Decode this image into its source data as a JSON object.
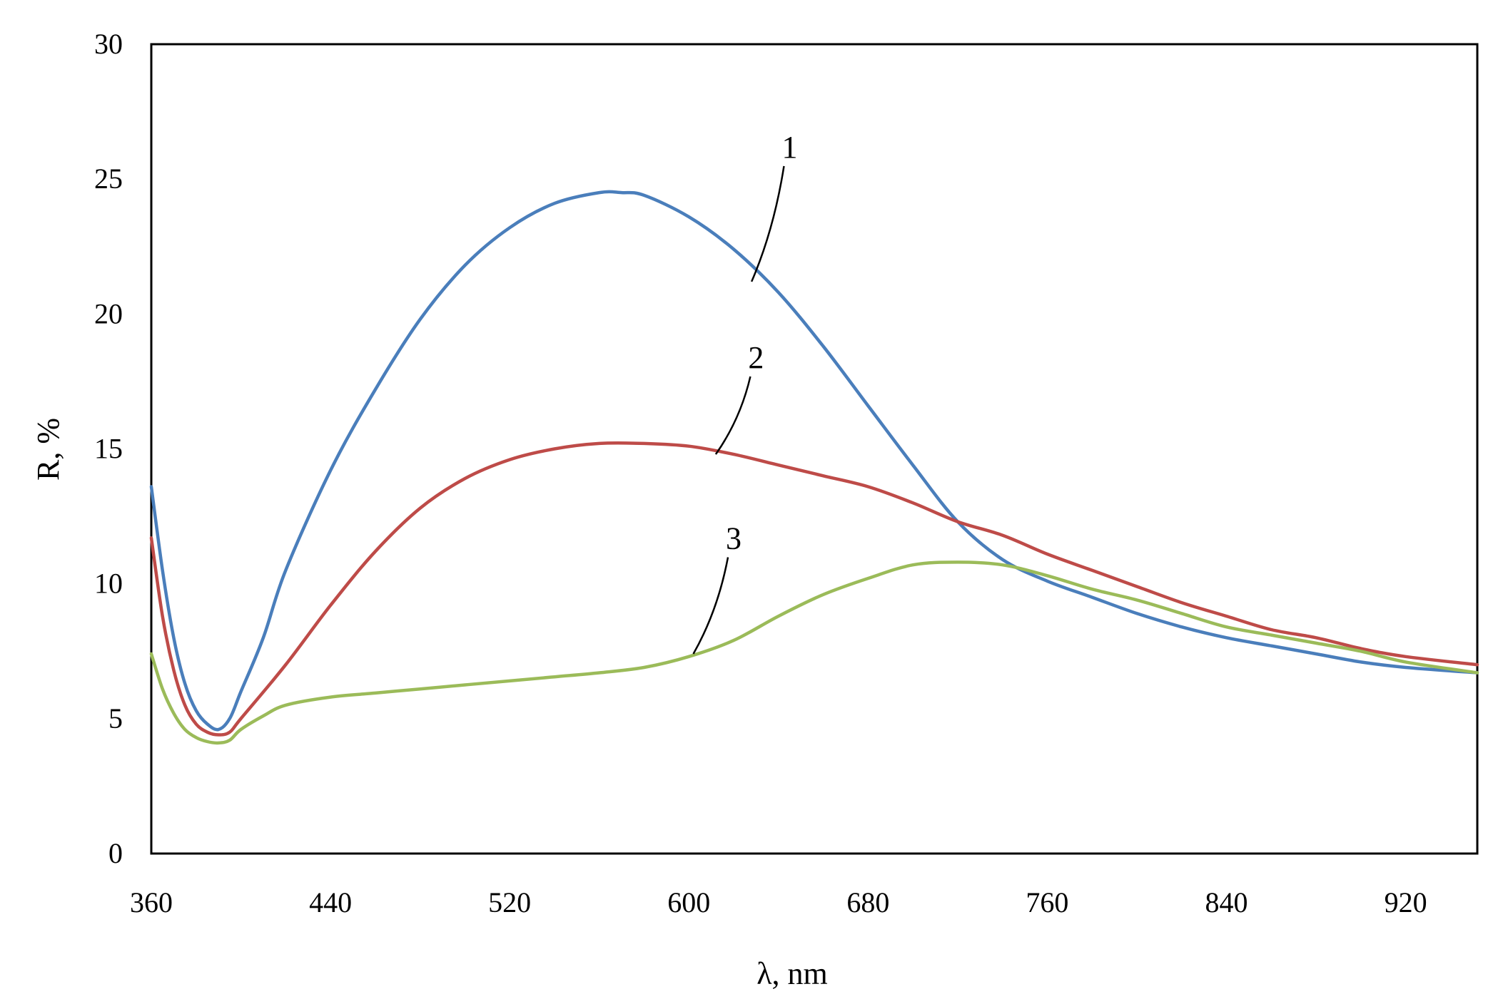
{
  "chart_data": {
    "type": "line",
    "title": "",
    "xlabel": "λ, nm",
    "ylabel": "R, %",
    "xlim": [
      360,
      952
    ],
    "ylim": [
      0,
      30
    ],
    "xticks": [
      360,
      440,
      520,
      600,
      680,
      760,
      840,
      920
    ],
    "yticks": [
      0,
      5,
      10,
      15,
      20,
      25,
      30
    ],
    "grid": false,
    "legend": "none",
    "series": [
      {
        "label": "1",
        "color": "#4a7ebb",
        "x": [
          360,
          365,
          370,
          375,
          380,
          385,
          390,
          395,
          400,
          410,
          420,
          440,
          460,
          480,
          500,
          520,
          540,
          560,
          570,
          580,
          600,
          620,
          640,
          660,
          680,
          700,
          720,
          740,
          760,
          780,
          800,
          820,
          840,
          860,
          880,
          900,
          920,
          952
        ],
        "y": [
          13.6,
          10.5,
          8.0,
          6.3,
          5.3,
          4.8,
          4.6,
          5.0,
          6.0,
          8.0,
          10.5,
          14.2,
          17.2,
          19.8,
          21.8,
          23.2,
          24.1,
          24.5,
          24.5,
          24.4,
          23.6,
          22.4,
          20.8,
          18.8,
          16.6,
          14.4,
          12.3,
          10.9,
          10.1,
          9.5,
          8.9,
          8.4,
          8.0,
          7.7,
          7.4,
          7.1,
          6.9,
          6.7
        ]
      },
      {
        "label": "2",
        "color": "#be4b48",
        "x": [
          360,
          365,
          370,
          375,
          380,
          385,
          390,
          395,
          400,
          420,
          440,
          460,
          480,
          500,
          520,
          540,
          560,
          580,
          600,
          620,
          640,
          660,
          680,
          700,
          720,
          740,
          760,
          780,
          800,
          820,
          840,
          860,
          880,
          900,
          920,
          952
        ],
        "y": [
          11.7,
          8.8,
          6.8,
          5.5,
          4.8,
          4.5,
          4.4,
          4.5,
          5.0,
          7.0,
          9.2,
          11.2,
          12.8,
          13.9,
          14.6,
          15.0,
          15.2,
          15.2,
          15.1,
          14.8,
          14.4,
          14.0,
          13.6,
          13.0,
          12.3,
          11.8,
          11.1,
          10.5,
          9.9,
          9.3,
          8.8,
          8.3,
          8.0,
          7.6,
          7.3,
          7.0
        ]
      },
      {
        "label": "3",
        "color": "#9bbb59",
        "x": [
          360,
          365,
          370,
          375,
          380,
          385,
          390,
          395,
          400,
          410,
          420,
          440,
          460,
          480,
          500,
          520,
          540,
          560,
          580,
          600,
          620,
          640,
          660,
          680,
          700,
          720,
          740,
          760,
          780,
          800,
          820,
          840,
          860,
          880,
          900,
          920,
          952
        ],
        "y": [
          7.4,
          6.1,
          5.2,
          4.6,
          4.3,
          4.15,
          4.1,
          4.2,
          4.6,
          5.1,
          5.5,
          5.8,
          5.95,
          6.1,
          6.25,
          6.4,
          6.55,
          6.7,
          6.9,
          7.3,
          7.9,
          8.8,
          9.6,
          10.2,
          10.7,
          10.8,
          10.7,
          10.3,
          9.8,
          9.4,
          8.9,
          8.4,
          8.1,
          7.8,
          7.5,
          7.1,
          6.7
        ]
      }
    ],
    "annotations": [
      {
        "text": "1",
        "x": 645,
        "y": 25.8,
        "target": [
          628,
          21.2
        ]
      },
      {
        "text": "2",
        "x": 630,
        "y": 18.0,
        "target": [
          612,
          14.8
        ]
      },
      {
        "text": "3",
        "x": 620,
        "y": 11.3,
        "target": [
          602,
          7.4
        ]
      }
    ]
  }
}
